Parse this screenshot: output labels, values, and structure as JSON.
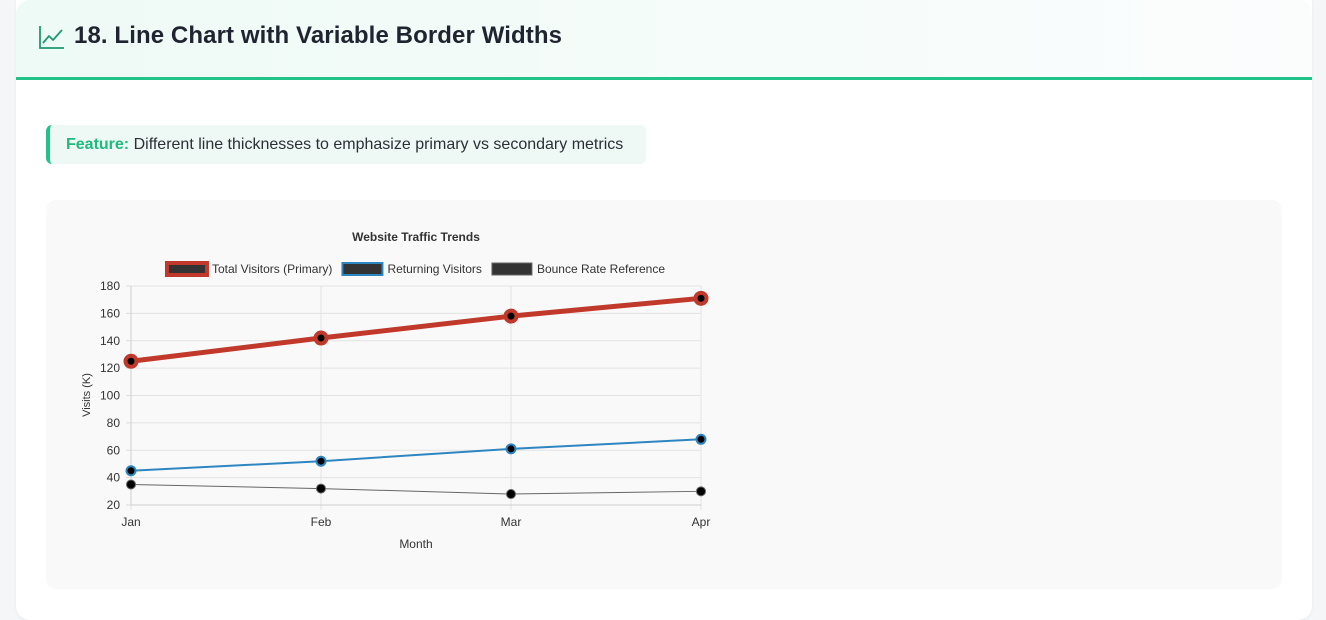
{
  "header": {
    "title": "18. Line Chart with Variable Border Widths",
    "icon": "line-chart-icon"
  },
  "feature": {
    "label": "Feature:",
    "text": "Different line thicknesses to emphasize primary vs secondary metrics"
  },
  "colors": {
    "accent": "#22c38a",
    "primary_series": "#c0392b",
    "secondary_series": "#2e86c1",
    "reference_series": "#666666"
  },
  "chart_data": {
    "type": "line",
    "title": "Website Traffic Trends",
    "xlabel": "Month",
    "ylabel": "Visits (K)",
    "categories": [
      "Jan",
      "Feb",
      "Mar",
      "Apr"
    ],
    "ylim": [
      20,
      180
    ],
    "yticks": [
      20,
      40,
      60,
      80,
      100,
      120,
      140,
      160,
      180
    ],
    "grid": true,
    "legend": "top",
    "series": [
      {
        "name": "Total Visitors (Primary)",
        "values": [
          125,
          142,
          158,
          171
        ],
        "color": "#c0392b",
        "line_weight": "thick"
      },
      {
        "name": "Returning Visitors",
        "values": [
          45,
          52,
          61,
          68
        ],
        "color": "#2e86c1",
        "line_weight": "medium"
      },
      {
        "name": "Bounce Rate Reference",
        "values": [
          35,
          32,
          28,
          30
        ],
        "color": "#666666",
        "line_weight": "thin"
      }
    ]
  }
}
